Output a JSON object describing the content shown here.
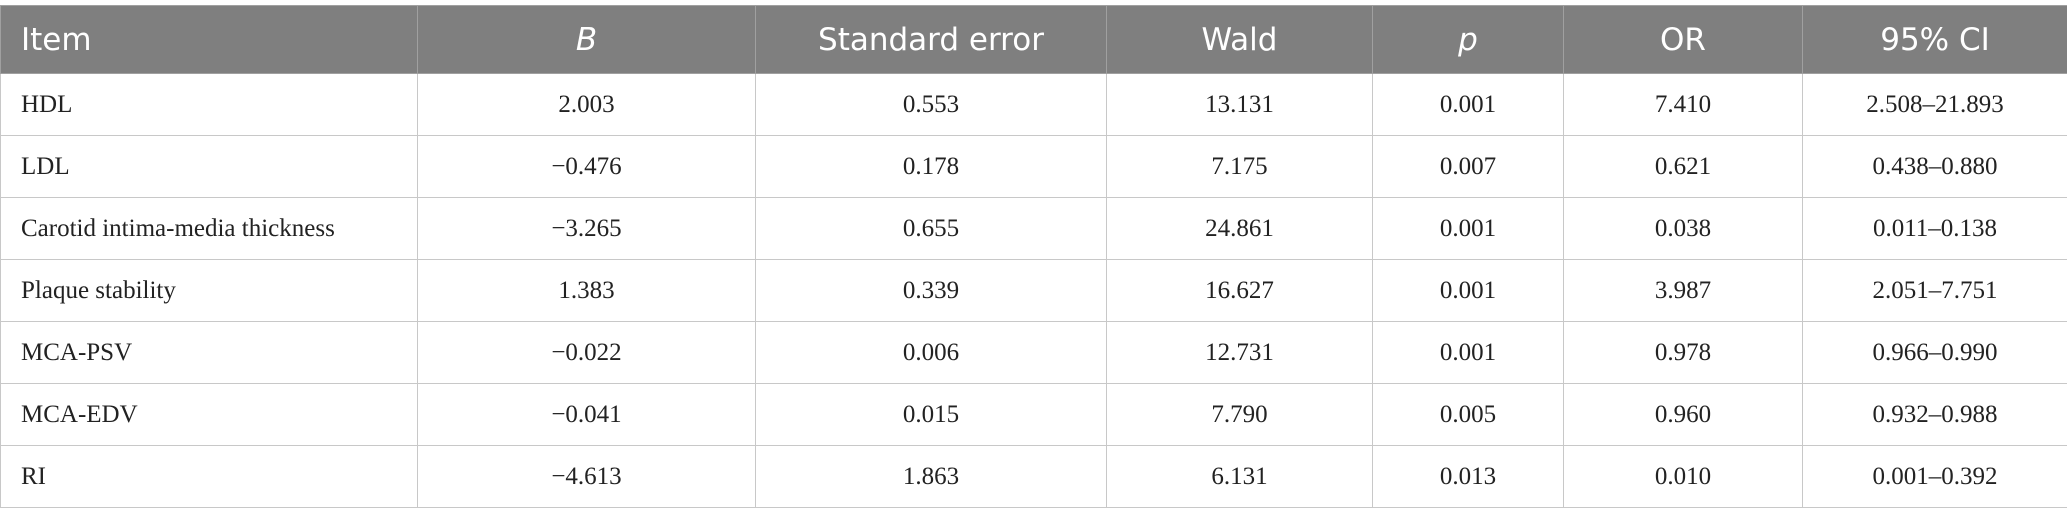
{
  "table": {
    "headers": [
      "Item",
      "B",
      "Standard error",
      "Wald",
      "p",
      "OR",
      "95% CI"
    ],
    "rows": [
      [
        "HDL",
        "2.003",
        "0.553",
        "13.131",
        "0.001",
        "7.410",
        "2.508–21.893"
      ],
      [
        "LDL",
        "−0.476",
        "0.178",
        "7.175",
        "0.007",
        "0.621",
        "0.438–0.880"
      ],
      [
        "Carotid intima-media thickness",
        "−3.265",
        "0.655",
        "24.861",
        "0.001",
        "0.038",
        "0.011–0.138"
      ],
      [
        "Plaque stability",
        "1.383",
        "0.339",
        "16.627",
        "0.001",
        "3.987",
        "2.051–7.751"
      ],
      [
        "MCA-PSV",
        "−0.022",
        "0.006",
        "12.731",
        "0.001",
        "0.978",
        "0.966–0.990"
      ],
      [
        "MCA-EDV",
        "−0.041",
        "0.015",
        "7.790",
        "0.005",
        "0.960",
        "0.932–0.988"
      ],
      [
        "RI",
        "−4.613",
        "1.863",
        "6.131",
        "0.013",
        "0.010",
        "0.001–0.392"
      ]
    ]
  }
}
